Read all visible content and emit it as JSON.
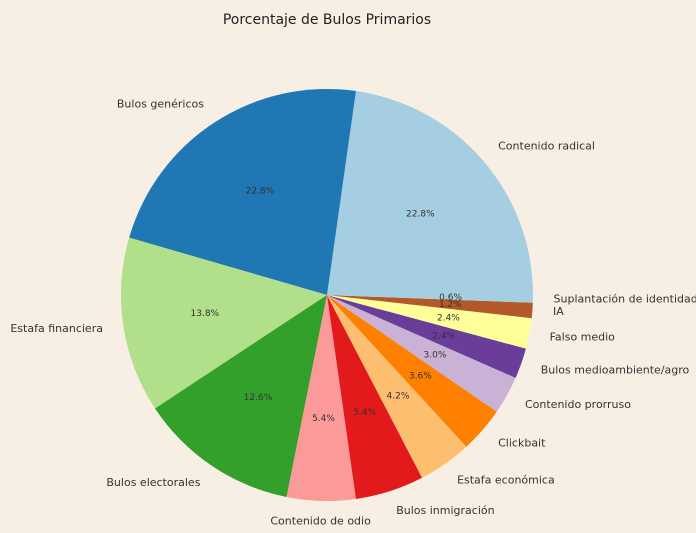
{
  "chart_data": {
    "type": "pie",
    "title": "Porcentaje de Bulos Primarios",
    "categories": [
      "Contenido radical",
      "Bulos genéricos",
      "Estafa financiera",
      "Bulos electorales",
      "Contenido de odio",
      "Bulos inmigración",
      "Estafa económica",
      "Clickbait",
      "Contenido prorruso",
      "Bulos medioambiente/agro",
      "Falso medio",
      "IA",
      "Suplantación de identidad"
    ],
    "values": [
      22.8,
      22.8,
      13.8,
      12.6,
      5.4,
      5.4,
      4.2,
      3.6,
      3.0,
      2.4,
      2.4,
      1.2,
      0.6
    ],
    "value_labels": [
      "22.8%",
      "22.8%",
      "13.8%",
      "12.6%",
      "5.4%",
      "5.4%",
      "4.2%",
      "3.6%",
      "3.0%",
      "2.4%",
      "2.4%",
      "1.2%",
      "0.6%"
    ],
    "colors": [
      "#a6cee3",
      "#1f78b4",
      "#b2df8a",
      "#33a02c",
      "#fb9a99",
      "#e31a1c",
      "#fdbf6f",
      "#ff7f00",
      "#cab2d6",
      "#6a3d9a",
      "#ffff99",
      "#b15928",
      "#a6cee3"
    ]
  }
}
